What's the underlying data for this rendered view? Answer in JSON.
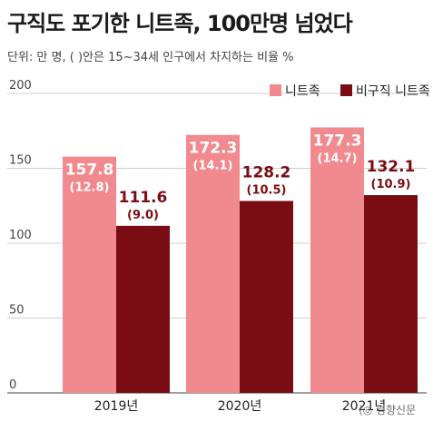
{
  "title": "구직도 포기한 니트족, 100만명 넘었다",
  "subtitle": "단위: 만 명, ( )안은 15~34세 인구에서 차지하는 비율 %",
  "watermark": "(◎ 경향신문",
  "colors": {
    "neet": "#f08a8e",
    "nonregular_neet": "#7a0d14",
    "neet_label": "#ffffff",
    "nonregular_label": "#7a0d14"
  },
  "chart_data": {
    "type": "bar",
    "title": "구직도 포기한 니트족, 100만명 넘었다",
    "subtitle": "단위: 만 명, ( )안은 15~34세 인구에서 차지하는 비율 %",
    "categories": [
      "2019년",
      "2020년",
      "2021년"
    ],
    "series": [
      {
        "name": "니트족",
        "values": [
          157.8,
          172.3,
          177.3
        ],
        "labels": [
          "157.8",
          "172.3",
          "177.3"
        ],
        "share_labels": [
          "(12.8)",
          "(14.1)",
          "(14.7)"
        ]
      },
      {
        "name": "비구직 니트족",
        "values": [
          111.6,
          128.2,
          132.1
        ],
        "labels": [
          "111.6",
          "128.2",
          "132.1"
        ],
        "share_labels": [
          "(9.0)",
          "(10.5)",
          "(10.9)"
        ]
      }
    ],
    "yticks": [
      "0",
      "50",
      "100",
      "150",
      "200"
    ],
    "ylim": [
      0,
      200
    ],
    "grid": true,
    "legend": "top-right"
  }
}
